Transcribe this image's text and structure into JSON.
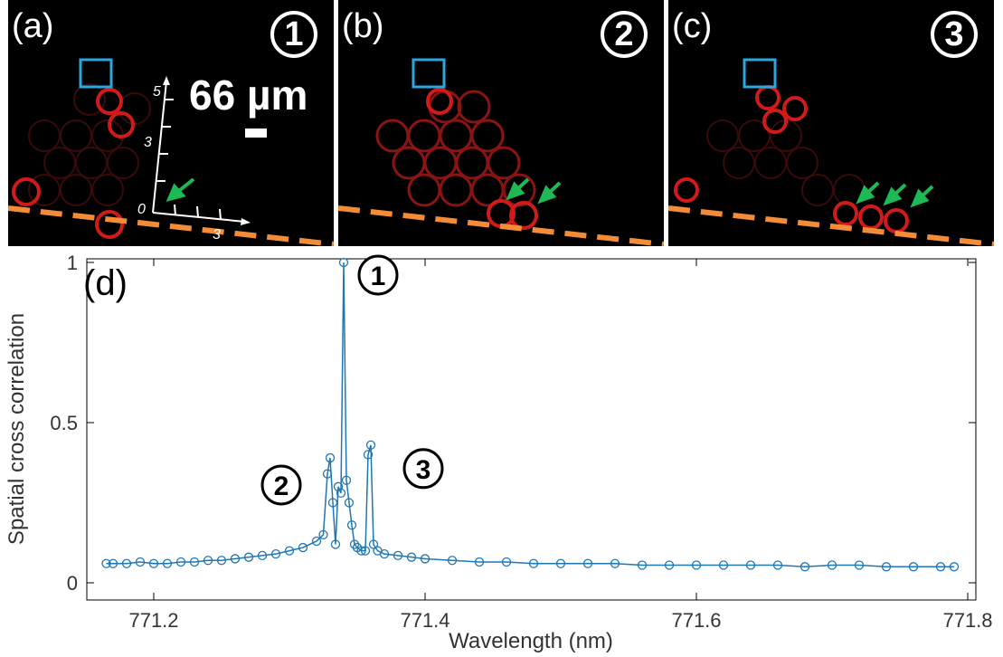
{
  "panels": [
    {
      "id": "a",
      "label": "(a)",
      "badge": "1"
    },
    {
      "id": "b",
      "label": "(b)",
      "badge": "2"
    },
    {
      "id": "c",
      "label": "(c)",
      "badge": "3"
    }
  ],
  "scale_bar": "66 µm",
  "inset_axis": {
    "vertical_ticks": [
      "5",
      "3",
      "0"
    ],
    "horizontal_ticks": [
      "3"
    ]
  },
  "colors": {
    "series": "#1f77b4",
    "dashed_line": "#f28c38",
    "box": "#2aa7de",
    "arrow": "#1db954",
    "ring": "#d11a1a"
  },
  "chart_data": {
    "type": "scatter",
    "panel_label": "(d)",
    "xlabel": "Wavelength (nm)",
    "ylabel": "Spatial cross correlation",
    "xlim": [
      771.16,
      771.8
    ],
    "ylim": [
      0,
      1
    ],
    "xticks": [
      "771.2",
      "771.4",
      "771.6",
      "771.8"
    ],
    "xtick_values": [
      771.2,
      771.4,
      771.6,
      771.8
    ],
    "yticks": [
      "0",
      "0.5",
      "1"
    ],
    "ytick_values": [
      0,
      0.5,
      1
    ],
    "annotations": [
      {
        "text": "1",
        "x": 771.34,
        "y": 1.0
      },
      {
        "text": "2",
        "x": 771.33,
        "y": 0.39
      },
      {
        "text": "3",
        "x": 771.36,
        "y": 0.43
      }
    ],
    "series": [
      {
        "marker": "open-circle-line",
        "x": [
          771.165,
          771.17,
          771.18,
          771.19,
          771.2,
          771.21,
          771.22,
          771.23,
          771.24,
          771.25,
          771.26,
          771.27,
          771.28,
          771.29,
          771.3,
          771.31,
          771.32,
          771.325,
          771.328,
          771.33,
          771.332,
          771.334,
          771.336,
          771.338,
          771.34,
          771.342,
          771.344,
          771.346,
          771.348,
          771.35,
          771.353,
          771.356,
          771.358,
          771.36,
          771.362,
          771.365,
          771.37,
          771.38,
          771.39,
          771.4,
          771.42,
          771.44,
          771.46,
          771.48,
          771.5,
          771.52,
          771.54,
          771.56,
          771.58,
          771.6,
          771.62,
          771.64,
          771.66,
          771.68,
          771.7,
          771.72,
          771.74,
          771.76,
          771.78,
          771.79
        ],
        "y": [
          0.06,
          0.06,
          0.06,
          0.065,
          0.06,
          0.06,
          0.065,
          0.065,
          0.07,
          0.07,
          0.075,
          0.08,
          0.085,
          0.09,
          0.1,
          0.11,
          0.13,
          0.15,
          0.34,
          0.39,
          0.25,
          0.12,
          0.3,
          0.28,
          1.0,
          0.32,
          0.25,
          0.18,
          0.12,
          0.11,
          0.1,
          0.1,
          0.4,
          0.43,
          0.12,
          0.1,
          0.09,
          0.085,
          0.08,
          0.075,
          0.07,
          0.065,
          0.065,
          0.06,
          0.06,
          0.06,
          0.06,
          0.055,
          0.055,
          0.055,
          0.055,
          0.055,
          0.055,
          0.05,
          0.055,
          0.055,
          0.05,
          0.05,
          0.05,
          0.05
        ]
      }
    ]
  }
}
